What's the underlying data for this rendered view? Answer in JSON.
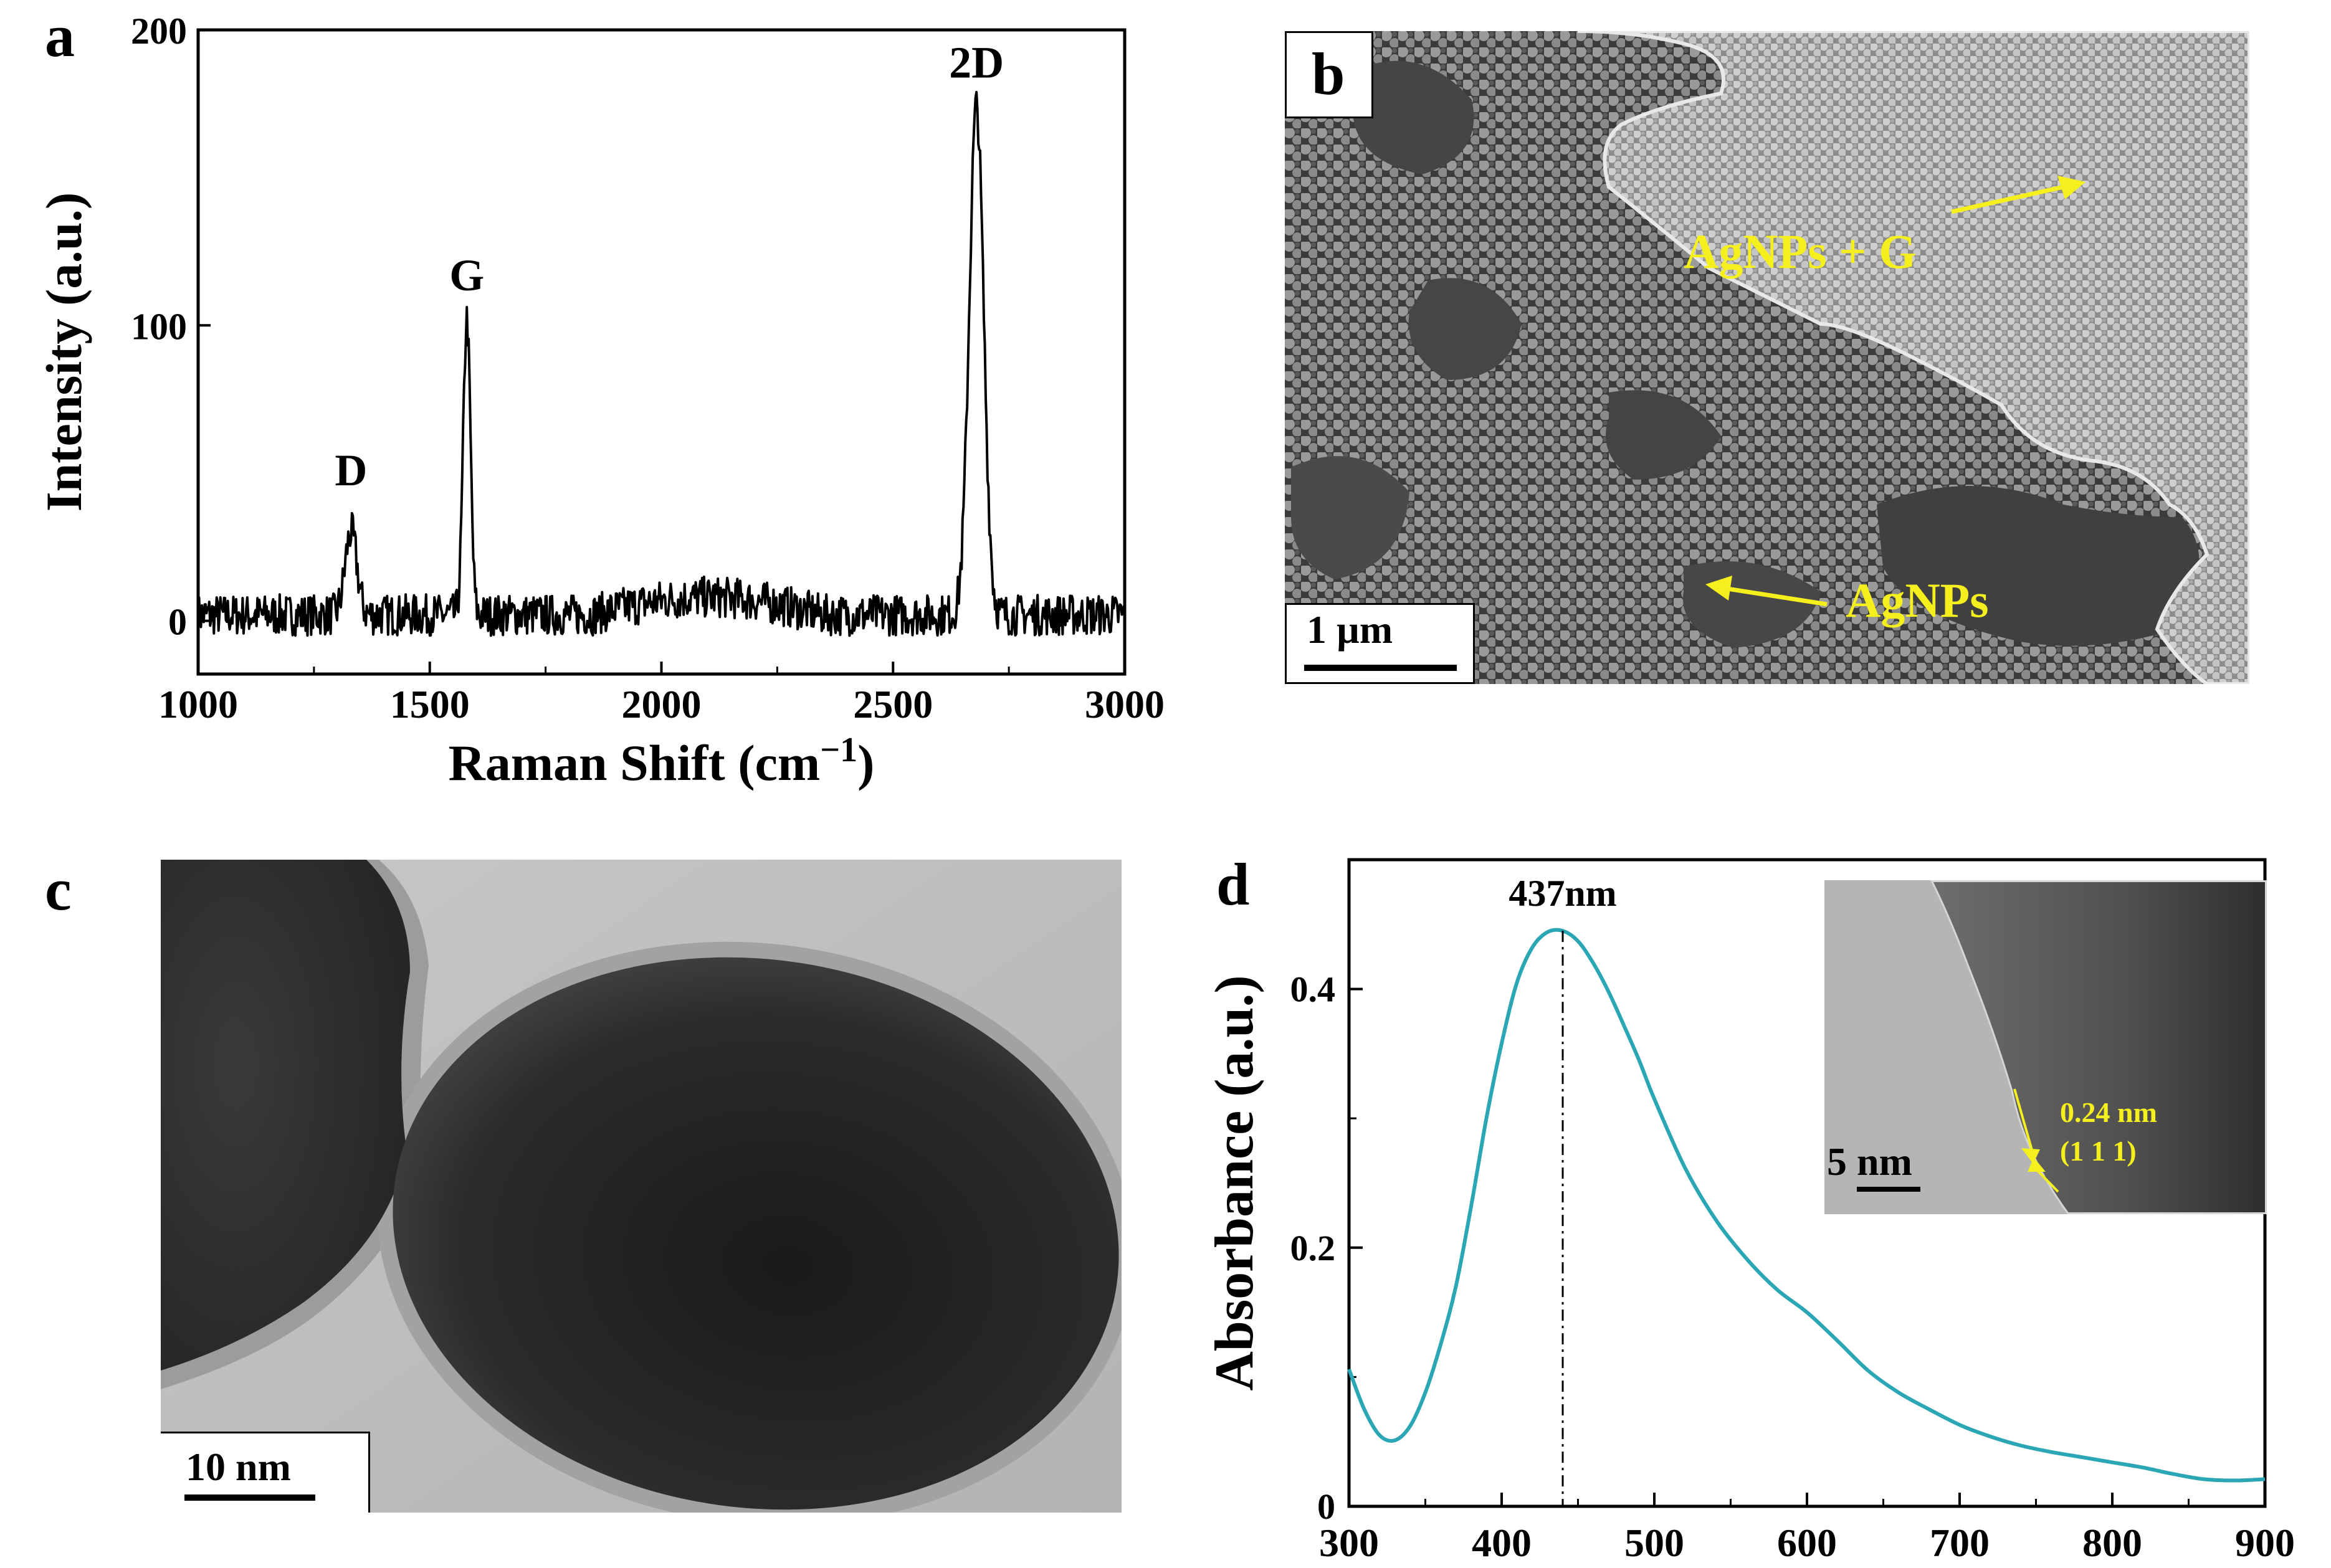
{
  "panels": {
    "a": {
      "letter": "a",
      "chart_data": {
        "type": "line",
        "title": "",
        "xlabel": "Raman Shift (cm",
        "xlabel_superscript": "−1",
        "xlabel_suffix": ")",
        "ylabel": "Intensity (a.u.)",
        "xlim": [
          1000,
          3000
        ],
        "ylim": [
          -18,
          200
        ],
        "xticks": [
          1000,
          1500,
          2000,
          2500,
          3000
        ],
        "yticks": [
          0,
          100,
          200
        ],
        "peak_labels": [
          {
            "text": "D",
            "x": 1330,
            "y": 40
          },
          {
            "text": "G",
            "x": 1580,
            "y": 106
          },
          {
            "text": "2D",
            "x": 2680,
            "y": 178
          }
        ],
        "series": [
          {
            "name": "Raman spectrum",
            "color": "#000000",
            "peaks": [
              {
                "center": 1330,
                "height": 28,
                "width": 18
              },
              {
                "center": 1580,
                "height": 100,
                "width": 11
              },
              {
                "center": 2680,
                "height": 172,
                "width": 22
              }
            ],
            "baseline": 2,
            "noise": 10
          }
        ]
      }
    },
    "b": {
      "letter": "b",
      "scale_label": "1 µm",
      "arrow_labels": [
        {
          "text": "AgNPs + G"
        },
        {
          "text": "AgNPs"
        }
      ],
      "annotation_color": "#f5ef1e"
    },
    "c": {
      "letter": "c",
      "scale_label": "10 nm"
    },
    "d": {
      "letter": "d",
      "chart_data": {
        "type": "line",
        "title": "",
        "xlabel": "",
        "ylabel": "Absorbance (a.u.)",
        "xlim": [
          300,
          900
        ],
        "ylim": [
          0,
          0.5
        ],
        "xticks": [
          300,
          400,
          500,
          600,
          700,
          800,
          900
        ],
        "yticks": [
          0,
          0.2,
          0.4
        ],
        "ytick_labels": [
          "0",
          "0.2",
          "0.4"
        ],
        "peak_annotation": {
          "text": "437nm",
          "x": 440
        },
        "series": [
          {
            "name": "UV-Vis absorbance",
            "color": "#2aa6b4",
            "x": [
              300,
              310,
              320,
              330,
              340,
              350,
              360,
              370,
              380,
              390,
              400,
              410,
              420,
              430,
              440,
              450,
              460,
              470,
              480,
              490,
              500,
              520,
              540,
              560,
              580,
              600,
              620,
              640,
              660,
              680,
              700,
              720,
              740,
              760,
              780,
              800,
              820,
              840,
              860,
              880,
              900
            ],
            "y": [
              0.106,
              0.075,
              0.055,
              0.051,
              0.062,
              0.088,
              0.125,
              0.17,
              0.232,
              0.3,
              0.358,
              0.405,
              0.432,
              0.444,
              0.445,
              0.437,
              0.42,
              0.398,
              0.372,
              0.345,
              0.315,
              0.262,
              0.222,
              0.192,
              0.168,
              0.15,
              0.128,
              0.105,
              0.088,
              0.075,
              0.063,
              0.054,
              0.047,
              0.042,
              0.038,
              0.034,
              0.03,
              0.025,
              0.021,
              0.02,
              0.021
            ]
          }
        ]
      },
      "inset": {
        "scale_label": "5 nm",
        "d_spacing": "0.24 nm",
        "plane": "(1 1 1)"
      }
    }
  }
}
